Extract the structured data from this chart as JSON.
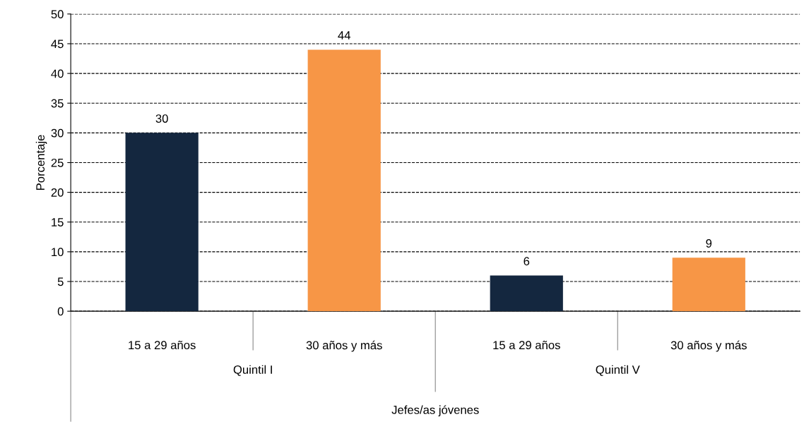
{
  "chart_data": {
    "type": "bar",
    "ylabel": "Porcentaje",
    "xlabel": "Jefes/as jóvenes",
    "categories": [
      "15 a 29 años",
      "30 años y más",
      "15 a 29 años",
      "30 años y más"
    ],
    "values": [
      30,
      44,
      6,
      9
    ],
    "colors": [
      "#14273f",
      "#f79646",
      "#14273f",
      "#f79646"
    ],
    "annotations": [
      "Quintil I",
      "Quintil V"
    ],
    "ylim": [
      0,
      50
    ],
    "yticks": [
      0,
      5,
      10,
      15,
      20,
      25,
      30,
      35,
      40,
      45,
      50
    ],
    "grid": "y",
    "data_labels": true,
    "legend": false
  }
}
